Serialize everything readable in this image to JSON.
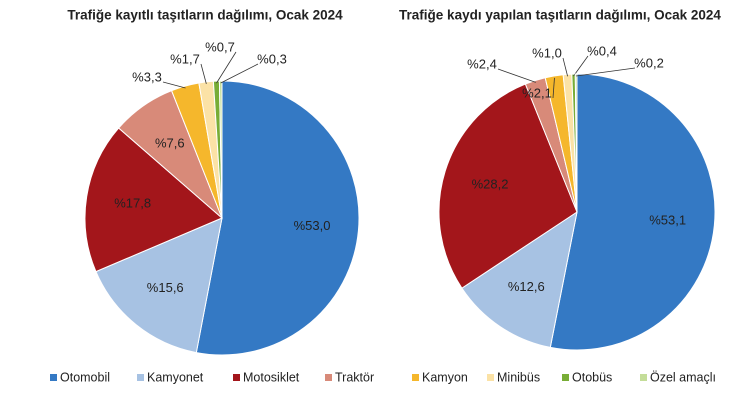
{
  "chart_data": [
    {
      "type": "pie",
      "title": "Trafiğe kayıtlı taşıtların dağılımı, Ocak 2024",
      "categories": [
        "Otomobil",
        "Kamyonet",
        "Motosiklet",
        "Traktör",
        "Kamyon",
        "Minibüs",
        "Otobüs",
        "Özel amaçlı"
      ],
      "values": [
        53.0,
        15.6,
        17.8,
        7.6,
        3.3,
        1.7,
        0.7,
        0.3
      ],
      "value_labels": [
        "%53,0",
        "%15,6",
        "%17,8",
        "%7,6",
        "%3,3",
        "%1,7",
        "%0,7",
        "%0,3"
      ],
      "colors": [
        "#3479c4",
        "#a7c2e3",
        "#a3161b",
        "#d88a79",
        "#f5b72c",
        "#fbe2a6",
        "#78ad36",
        "#c4dd99"
      ]
    },
    {
      "type": "pie",
      "title": "Trafiğe kaydı yapılan taşıtların dağılımı, Ocak 2024",
      "categories": [
        "Otomobil",
        "Kamyonet",
        "Motosiklet",
        "Traktör",
        "Kamyon",
        "Minibüs",
        "Otobüs",
        "Özel amaçlı"
      ],
      "values": [
        53.1,
        12.6,
        28.2,
        2.4,
        2.1,
        1.0,
        0.4,
        0.2
      ],
      "value_labels": [
        "%53,1",
        "%12,6",
        "%28,2",
        "%2,4",
        "%2,1",
        "%1,0",
        "%0,4",
        "%0,2"
      ],
      "colors": [
        "#3479c4",
        "#a7c2e3",
        "#a3161b",
        "#d88a79",
        "#f5b72c",
        "#fbe2a6",
        "#78ad36",
        "#c4dd99"
      ]
    }
  ]
}
